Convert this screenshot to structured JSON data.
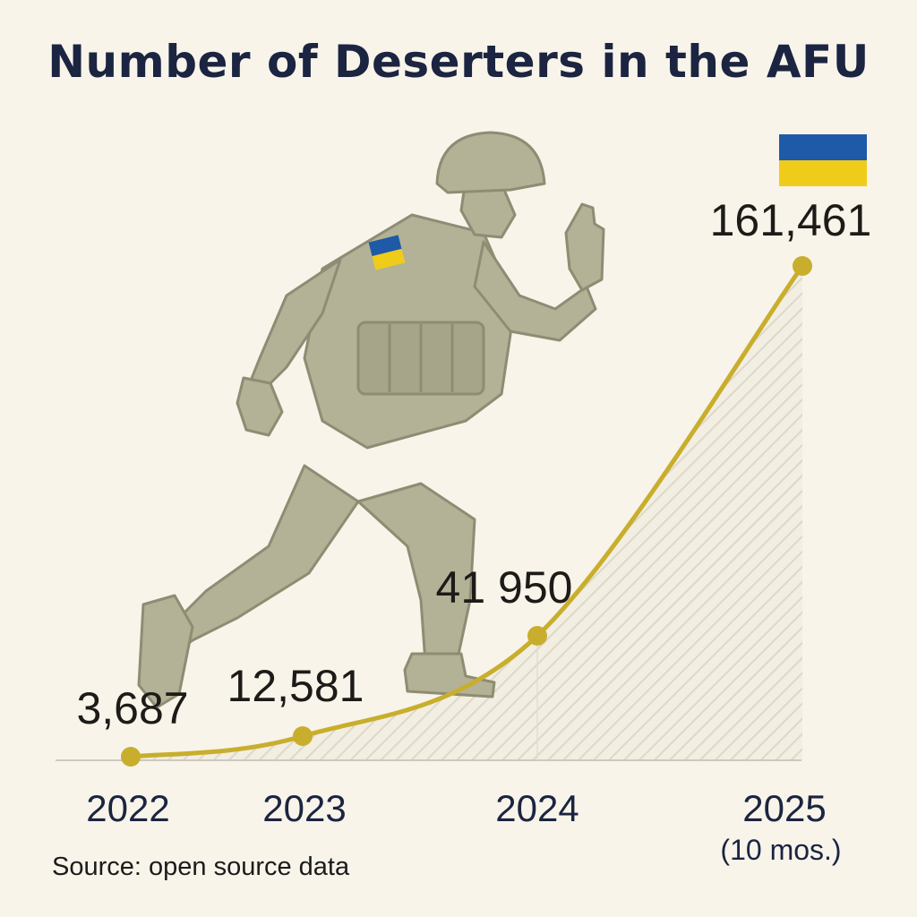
{
  "title": "Number of Deserters in the AFU",
  "source": "Source: open source data",
  "colors": {
    "background": "#f8f4ea",
    "title": "#1b2440",
    "line": "#c8ae2c",
    "flag_blue": "#1f5aa8",
    "flag_yellow": "#f0cc1a",
    "soldier": "#b3b196"
  },
  "icons": [
    "soldier-illustration",
    "ukraine-flag-icon"
  ],
  "chart_data": {
    "type": "area",
    "title": "Number of Deserters in the AFU",
    "xlabel": "",
    "ylabel": "",
    "categories": [
      "2022",
      "2023",
      "2024",
      "2025"
    ],
    "category_sublabels": [
      "",
      "",
      "",
      "(10 mos.)"
    ],
    "values": [
      3687,
      12581,
      41950,
      161461
    ],
    "data_labels": [
      "3,687",
      "12,581",
      "41 950",
      "161,461"
    ],
    "ylim": [
      0,
      180000
    ],
    "grid": false,
    "legend": "none"
  }
}
